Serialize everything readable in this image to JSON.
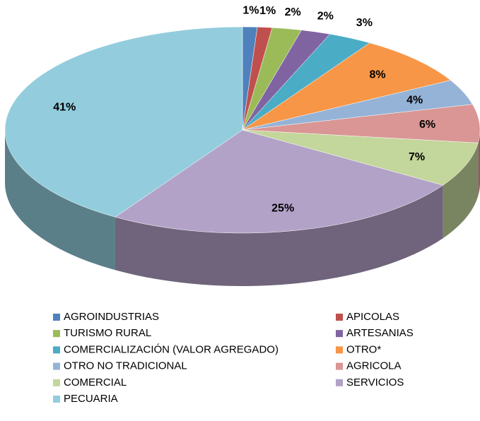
{
  "chart_data": {
    "type": "pie",
    "categories": [
      "AGROINDUSTRIAS",
      "APICOLAS",
      "TURISMO RURAL",
      "ARTESANIAS",
      "COMERCIALIZACIÓN (VALOR AGREGADO)",
      "OTRO*",
      "OTRO NO TRADICIONAL",
      "AGRICOLA",
      "COMERCIAL",
      "SERVICIOS",
      "PECUARIA"
    ],
    "values": [
      1,
      1,
      2,
      2,
      3,
      8,
      4,
      6,
      7,
      25,
      41
    ],
    "value_labels": [
      "1%",
      "1%",
      "2%",
      "2%",
      "3%",
      "8%",
      "4%",
      "6%",
      "7%",
      "25%",
      "41%"
    ],
    "colors": [
      "#4f81bd",
      "#c0504d",
      "#9bbb59",
      "#8064a2",
      "#4bacc6",
      "#f79646",
      "#95b3d7",
      "#d99694",
      "#c3d69b",
      "#b3a2c7",
      "#93cddd"
    ],
    "legend": "bottom"
  }
}
